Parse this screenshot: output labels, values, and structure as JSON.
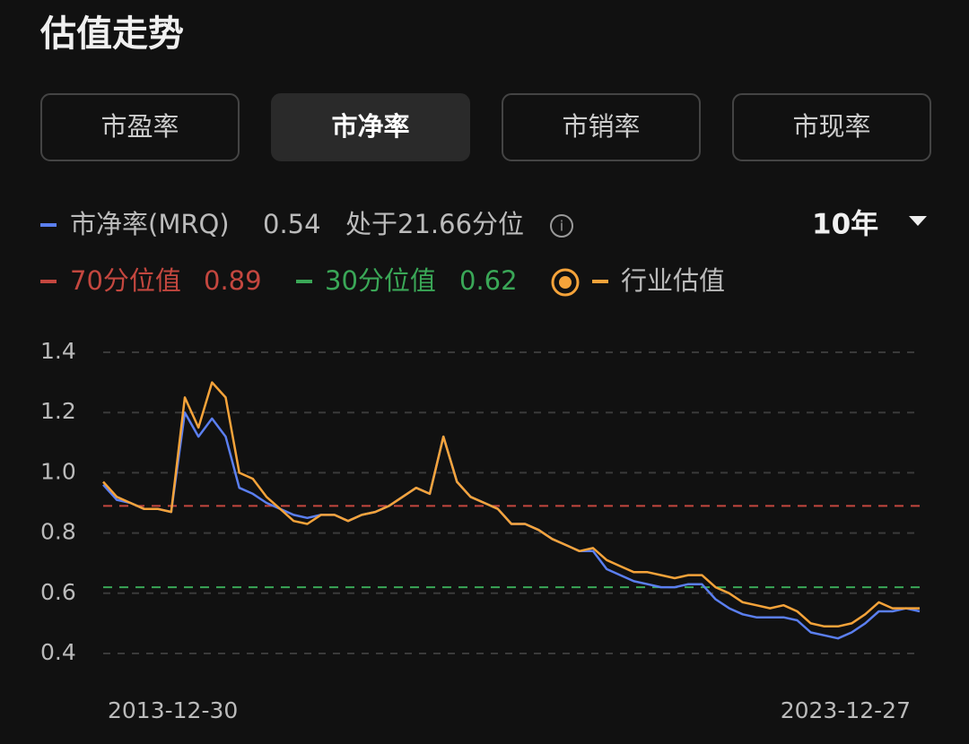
{
  "header": {
    "title": "估值走势"
  },
  "tabs": [
    {
      "label": "市盈率",
      "active": false
    },
    {
      "label": "市净率",
      "active": true
    },
    {
      "label": "市销率",
      "active": false
    },
    {
      "label": "市现率",
      "active": false
    }
  ],
  "period": "10年",
  "current": {
    "value": 0.54,
    "percentile_text": "处于21.66分位"
  },
  "chart_data": {
    "type": "line",
    "categories": [
      "2013-12-30",
      null,
      null,
      null,
      null,
      null,
      null,
      null,
      null,
      null,
      null,
      null,
      null,
      null,
      null,
      null,
      null,
      null,
      null,
      null,
      null,
      null,
      null,
      null,
      null,
      null,
      null,
      null,
      null,
      null,
      null,
      null,
      null,
      null,
      null,
      null,
      null,
      null,
      null,
      null,
      null,
      null,
      null,
      null,
      null,
      null,
      null,
      null,
      null,
      null,
      null,
      null,
      null,
      null,
      null,
      null,
      null,
      null,
      null,
      null,
      "2023-12-27"
    ],
    "series": [
      {
        "name": "市净率(MRQ)",
        "color": "#5b7ff0",
        "values": [
          0.96,
          0.91,
          0.9,
          0.88,
          0.88,
          0.87,
          1.2,
          1.12,
          1.18,
          1.12,
          0.95,
          0.93,
          0.9,
          0.88,
          0.86,
          0.85,
          0.86,
          0.86,
          0.84,
          0.86,
          0.87,
          0.89,
          0.92,
          0.95,
          0.93,
          1.12,
          0.97,
          0.92,
          0.9,
          0.88,
          0.83,
          0.83,
          0.81,
          0.78,
          0.76,
          0.74,
          0.74,
          0.68,
          0.66,
          0.64,
          0.63,
          0.62,
          0.62,
          0.63,
          0.63,
          0.58,
          0.55,
          0.53,
          0.52,
          0.52,
          0.52,
          0.51,
          0.47,
          0.46,
          0.45,
          0.47,
          0.5,
          0.54,
          0.54,
          0.55,
          0.54
        ]
      },
      {
        "name": "行业估值",
        "color": "#f5a33a",
        "values": [
          0.97,
          0.92,
          0.9,
          0.88,
          0.88,
          0.87,
          1.25,
          1.15,
          1.3,
          1.25,
          1.0,
          0.98,
          0.92,
          0.88,
          0.84,
          0.83,
          0.86,
          0.86,
          0.84,
          0.86,
          0.87,
          0.89,
          0.92,
          0.95,
          0.93,
          1.12,
          0.97,
          0.92,
          0.9,
          0.88,
          0.83,
          0.83,
          0.81,
          0.78,
          0.76,
          0.74,
          0.75,
          0.71,
          0.69,
          0.67,
          0.67,
          0.66,
          0.65,
          0.66,
          0.66,
          0.62,
          0.6,
          0.57,
          0.56,
          0.55,
          0.56,
          0.54,
          0.5,
          0.49,
          0.49,
          0.5,
          0.53,
          0.57,
          0.55,
          0.55,
          0.55
        ]
      }
    ],
    "reference_lines": [
      {
        "name": "70分位值",
        "value": 0.89,
        "color": "#c4473f"
      },
      {
        "name": "30分位值",
        "value": 0.62,
        "color": "#3aa757"
      }
    ],
    "ylim": [
      0.4,
      1.4
    ],
    "yticks": [
      0.4,
      0.6,
      0.8,
      {
        "value": 1,
        "label": "1.0"
      },
      1.2,
      1.4
    ],
    "grid": true
  }
}
